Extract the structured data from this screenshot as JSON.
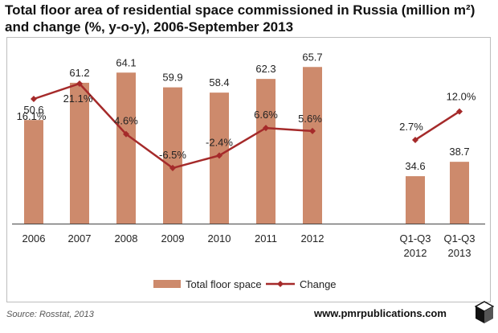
{
  "title": {
    "line1": "Total floor area of residential space commissioned in Russia (million m²)",
    "line2": "and change (%, y-o-y), 2006-September 2013"
  },
  "source": "Source: Rosstat, 2013",
  "brand": "www.pmrpublications.com",
  "colors": {
    "bar": "#cd8a6c",
    "line": "#a52a2a",
    "axis": "#444444"
  },
  "chart_data": {
    "type": "bar",
    "categories": [
      "2006",
      "2007",
      "2008",
      "2009",
      "2010",
      "2011",
      "2012",
      "Q1-Q3 2012",
      "Q1-Q3 2013"
    ],
    "series": [
      {
        "name": "Total floor space",
        "type": "bar",
        "values": [
          50.6,
          61.2,
          64.1,
          59.9,
          58.4,
          62.3,
          65.7,
          34.6,
          38.7
        ],
        "labels": [
          "50.6",
          "61.2",
          "64.1",
          "59.9",
          "58.4",
          "62.3",
          "65.7",
          "34.6",
          "38.7"
        ]
      },
      {
        "name": "Change",
        "type": "line",
        "values": [
          16.1,
          21.1,
          4.6,
          -6.5,
          -2.4,
          6.6,
          5.6,
          2.7,
          12.0
        ],
        "labels": [
          "16.1%",
          "21.1%",
          "4.6%",
          "-6.5%",
          "-2.4%",
          "6.6%",
          "5.6%",
          "2.7%",
          "12.0%"
        ]
      }
    ],
    "line_groups": [
      [
        0,
        1,
        2,
        3,
        4,
        5,
        6
      ],
      [
        7,
        8
      ]
    ],
    "legend": {
      "position": "bottom",
      "entries": [
        "Total floor space",
        "Change"
      ]
    },
    "grid": false
  }
}
